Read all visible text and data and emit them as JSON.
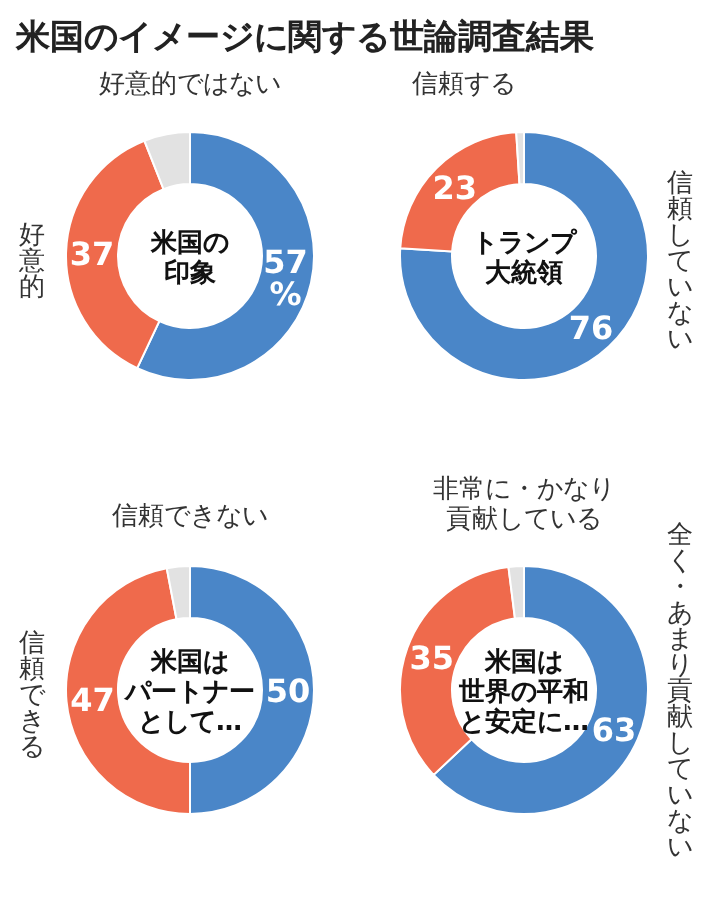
{
  "chart_data": [
    {
      "type": "other",
      "title": "米国のイメージに関する世論調査結果"
    },
    {
      "type": "donut",
      "title": "米国の印象",
      "categories": [
        "好意的ではない",
        "好意的",
        null
      ],
      "values": [
        57,
        37,
        6
      ],
      "colors": [
        "#4a86c8",
        "#ef6a4c",
        "#e2e2e2"
      ],
      "value_labels": [
        "57%",
        "37",
        null
      ]
    },
    {
      "type": "donut",
      "title": "トランプ大統領",
      "categories": [
        "信頼していない",
        "信頼する",
        null
      ],
      "values": [
        76,
        23,
        1
      ],
      "colors": [
        "#4a86c8",
        "#ef6a4c",
        "#e2e2e2"
      ],
      "value_labels": [
        "76",
        "23",
        null
      ]
    },
    {
      "type": "donut",
      "title": "米国はパートナーとして…",
      "categories": [
        "信頼できない",
        "信頼できる",
        null
      ],
      "values": [
        50,
        47,
        3
      ],
      "colors": [
        "#4a86c8",
        "#ef6a4c",
        "#e2e2e2"
      ],
      "value_labels": [
        "50",
        "47",
        null
      ]
    },
    {
      "type": "donut",
      "title": "米国は世界の平和と安定に…",
      "categories": [
        "全く・あまり貢献していない",
        "非常に・かなり貢献している",
        null
      ],
      "values": [
        63,
        35,
        2
      ],
      "colors": [
        "#4a86c8",
        "#ef6a4c",
        "#e2e2e2"
      ],
      "value_labels": [
        "63",
        "35",
        null
      ]
    }
  ]
}
